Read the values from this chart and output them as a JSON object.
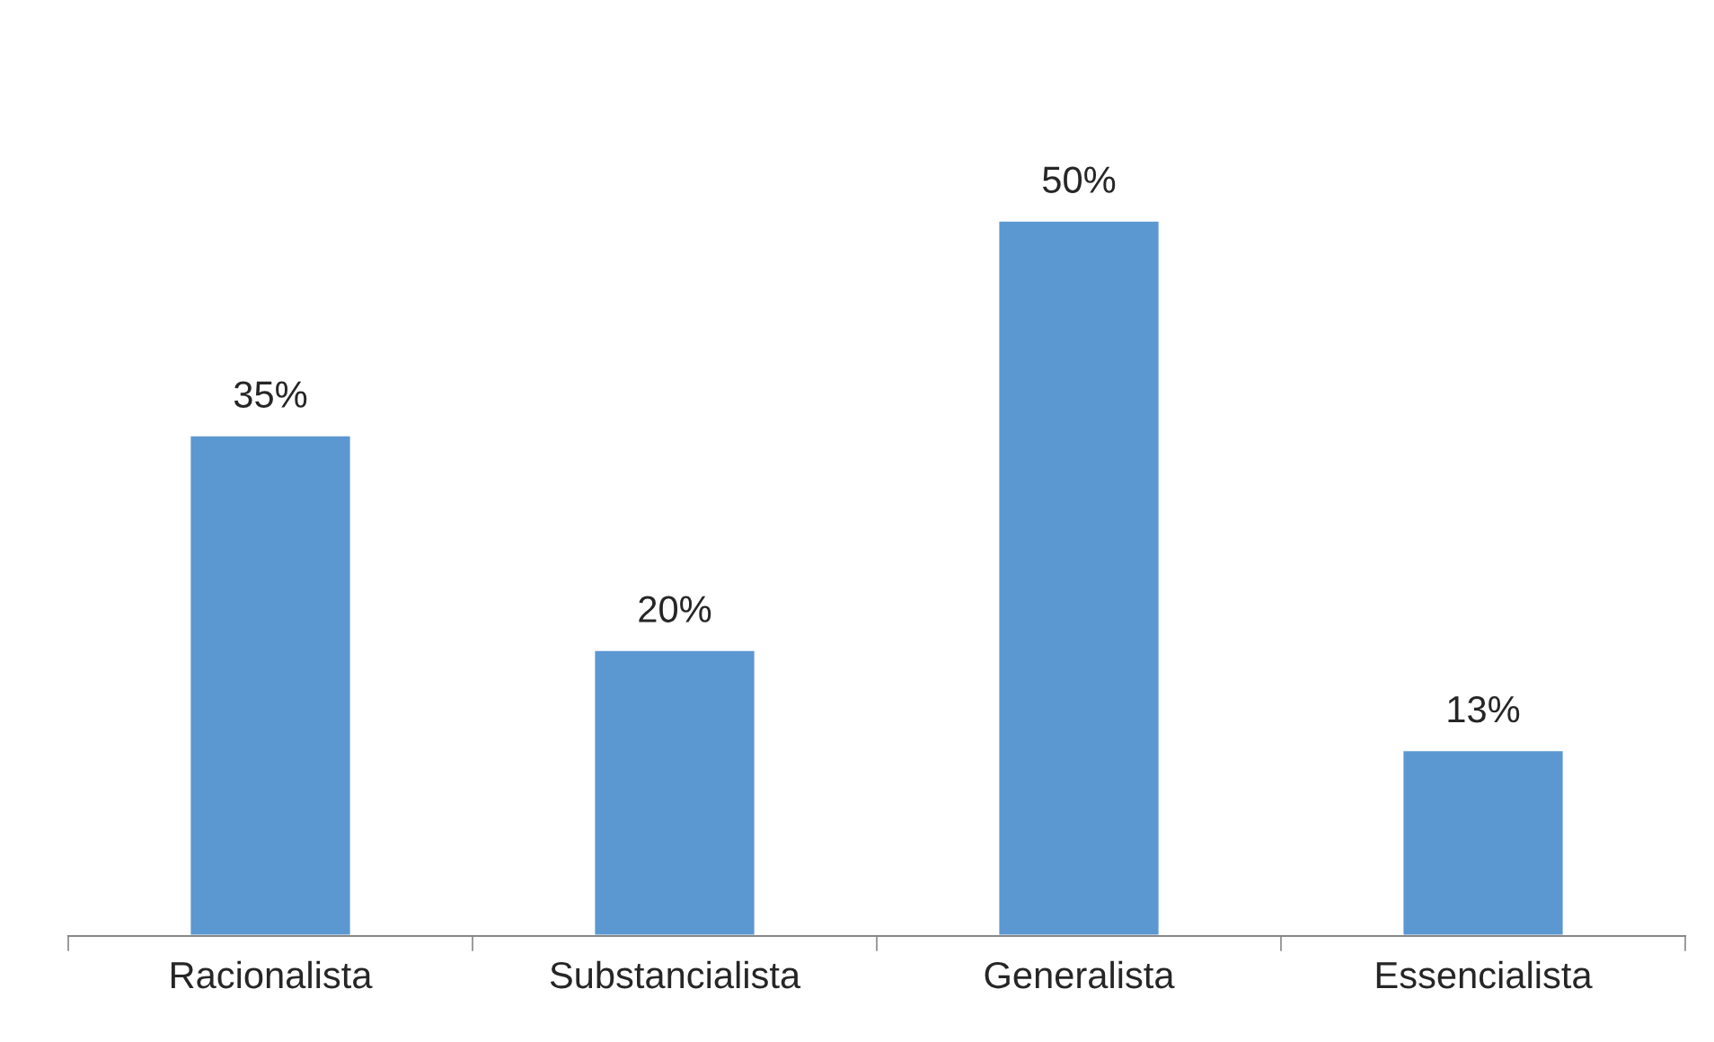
{
  "chart_data": {
    "type": "bar",
    "categories": [
      "Racionalista",
      "Substancialista",
      "Generalista",
      "Essencialista"
    ],
    "values": [
      35,
      20,
      50,
      13
    ],
    "value_labels": [
      "35%",
      "20%",
      "50%",
      "13%"
    ],
    "color": "#5b97d1",
    "grid": false,
    "legend": false
  }
}
